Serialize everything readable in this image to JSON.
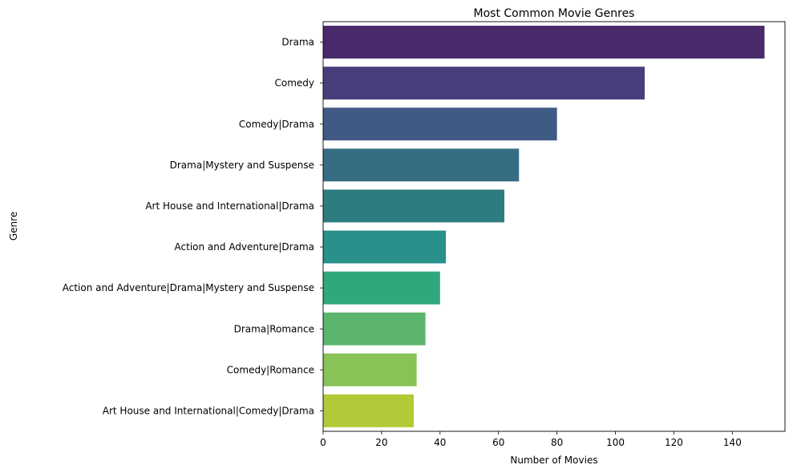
{
  "chart_data": {
    "type": "bar",
    "orientation": "horizontal",
    "title": "Most Common Movie Genres",
    "xlabel": "Number of Movies",
    "ylabel": "Genre",
    "xlim": [
      0,
      158
    ],
    "xticks": [
      0,
      20,
      40,
      60,
      80,
      100,
      120,
      140
    ],
    "grid": false,
    "categories": [
      "Drama",
      "Comedy",
      "Comedy|Drama",
      "Drama|Mystery and Suspense",
      "Art House and International|Drama",
      "Action and Adventure|Drama",
      "Action and Adventure|Drama|Mystery and Suspense",
      "Drama|Romance",
      "Comedy|Romance",
      "Art House and International|Comedy|Drama"
    ],
    "values": [
      151,
      110,
      80,
      67,
      62,
      42,
      40,
      35,
      32,
      31
    ],
    "colors": [
      "#482a6b",
      "#463f7c",
      "#405a86",
      "#366d82",
      "#2d7c80",
      "#29908a",
      "#2fa87c",
      "#5cb56c",
      "#88c357",
      "#b2ca38"
    ]
  }
}
